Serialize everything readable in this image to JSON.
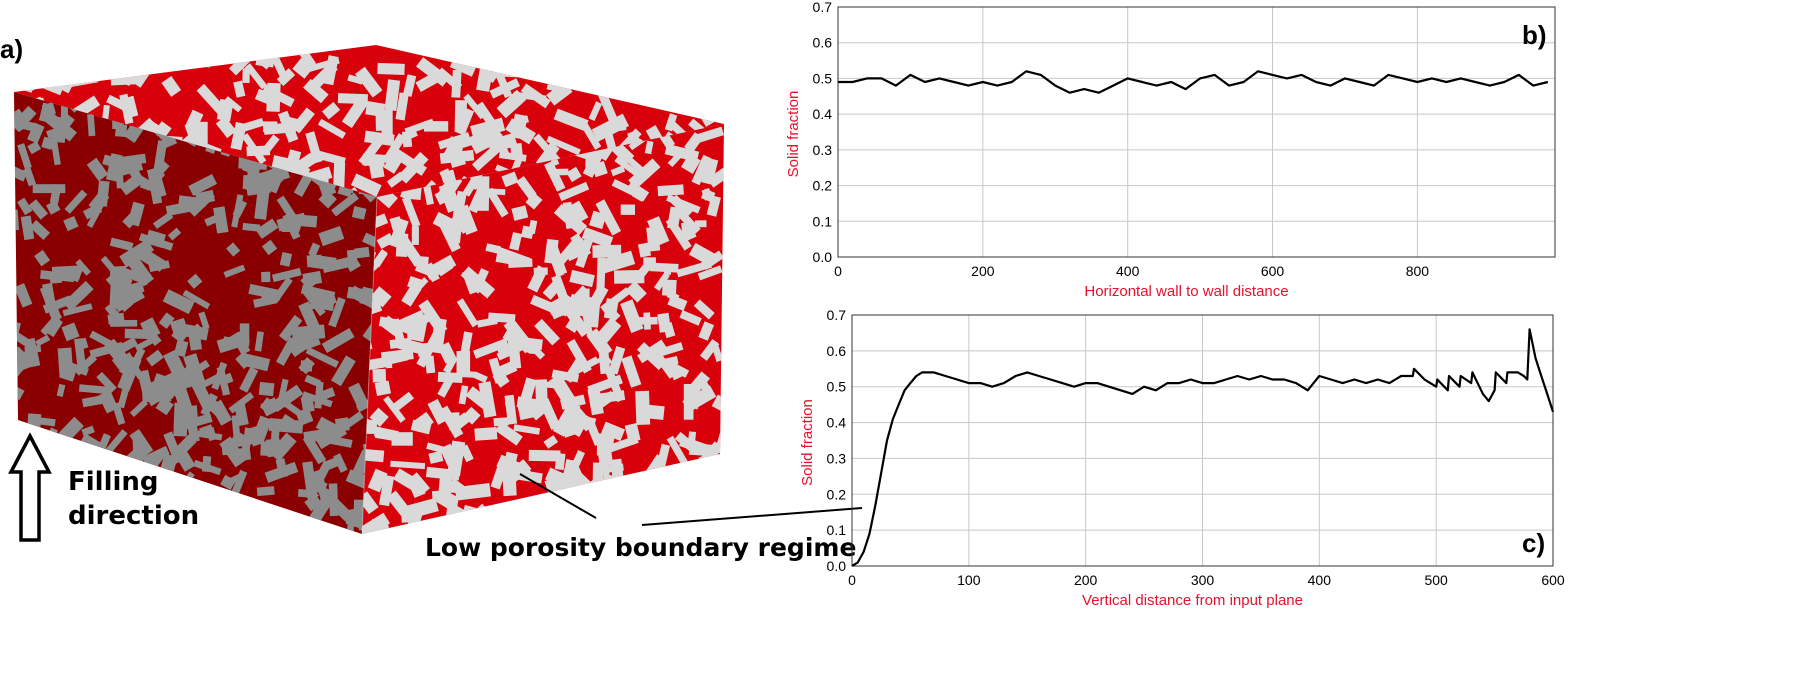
{
  "panel_a": {
    "label": "a)",
    "arrow_label_line1": "Filling",
    "arrow_label_line2": "direction",
    "annotation": "Low porosity boundary regime",
    "colors": {
      "red_light": "#d8000a",
      "red_dark": "#8a0000",
      "grain_light": "#d9d9d9",
      "grain_dark": "#8c8c8c"
    }
  },
  "chart_data": [
    {
      "type": "line",
      "panel": "b)",
      "xlabel": "Horizontal wall to wall distance",
      "ylabel": "Solid fraction",
      "xlim": [
        0,
        990
      ],
      "ylim": [
        0,
        0.7
      ],
      "xticks": [
        0,
        200,
        400,
        600,
        800
      ],
      "yticks": [
        0.0,
        0.1,
        0.2,
        0.3,
        0.4,
        0.5,
        0.6,
        0.7
      ],
      "grid": true,
      "line_color": "#000000",
      "label_color": "#e8112d",
      "series": [
        {
          "x": [
            0,
            20,
            40,
            60,
            80,
            100,
            120,
            140,
            160,
            180,
            200,
            220,
            240,
            260,
            280,
            300,
            320,
            340,
            360,
            380,
            400,
            420,
            440,
            460,
            480,
            500,
            520,
            540,
            560,
            580,
            600,
            620,
            640,
            660,
            680,
            700,
            720,
            740,
            760,
            780,
            800,
            820,
            840,
            860,
            880,
            900,
            920,
            940,
            960,
            980
          ],
          "y": [
            0.49,
            0.49,
            0.5,
            0.5,
            0.48,
            0.51,
            0.49,
            0.5,
            0.49,
            0.48,
            0.49,
            0.48,
            0.49,
            0.52,
            0.51,
            0.48,
            0.46,
            0.47,
            0.46,
            0.48,
            0.5,
            0.49,
            0.48,
            0.49,
            0.47,
            0.5,
            0.51,
            0.48,
            0.49,
            0.52,
            0.51,
            0.5,
            0.51,
            0.49,
            0.48,
            0.5,
            0.49,
            0.48,
            0.51,
            0.5,
            0.49,
            0.5,
            0.49,
            0.5,
            0.49,
            0.48,
            0.49,
            0.51,
            0.48,
            0.49
          ]
        }
      ]
    },
    {
      "type": "line",
      "panel": "c)",
      "xlabel": "Vertical distance from input plane",
      "ylabel": "Solid fraction",
      "xlim": [
        0,
        600
      ],
      "ylim": [
        0,
        0.7
      ],
      "xticks": [
        0,
        100,
        200,
        300,
        400,
        500,
        600
      ],
      "yticks": [
        0.0,
        0.1,
        0.2,
        0.3,
        0.4,
        0.5,
        0.6,
        0.7
      ],
      "grid": true,
      "line_color": "#000000",
      "label_color": "#e8112d",
      "series": [
        {
          "x": [
            0,
            5,
            10,
            15,
            20,
            25,
            30,
            35,
            40,
            45,
            50,
            55,
            60,
            65,
            70,
            80,
            90,
            100,
            110,
            120,
            130,
            140,
            150,
            160,
            170,
            180,
            190,
            200,
            210,
            220,
            230,
            240,
            250,
            260,
            270,
            280,
            290,
            300,
            310,
            320,
            330,
            340,
            350,
            360,
            370,
            380,
            390,
            400,
            410,
            420,
            430,
            440,
            450,
            460,
            470,
            480,
            481,
            490,
            500,
            501,
            510,
            511,
            520,
            521,
            530,
            531,
            540,
            545,
            550,
            551,
            560,
            561,
            570,
            575,
            578,
            580,
            585,
            590,
            595,
            600
          ],
          "y": [
            0.0,
            0.01,
            0.04,
            0.09,
            0.17,
            0.26,
            0.35,
            0.41,
            0.45,
            0.49,
            0.51,
            0.53,
            0.54,
            0.54,
            0.54,
            0.53,
            0.52,
            0.51,
            0.51,
            0.5,
            0.51,
            0.53,
            0.54,
            0.53,
            0.52,
            0.51,
            0.5,
            0.51,
            0.51,
            0.5,
            0.49,
            0.48,
            0.5,
            0.49,
            0.51,
            0.51,
            0.52,
            0.51,
            0.51,
            0.52,
            0.53,
            0.52,
            0.53,
            0.52,
            0.52,
            0.51,
            0.49,
            0.53,
            0.52,
            0.51,
            0.52,
            0.51,
            0.52,
            0.51,
            0.53,
            0.53,
            0.55,
            0.52,
            0.5,
            0.52,
            0.49,
            0.53,
            0.5,
            0.53,
            0.51,
            0.54,
            0.48,
            0.46,
            0.49,
            0.54,
            0.51,
            0.54,
            0.54,
            0.53,
            0.52,
            0.66,
            0.58,
            0.53,
            0.48,
            0.43
          ]
        }
      ]
    }
  ]
}
